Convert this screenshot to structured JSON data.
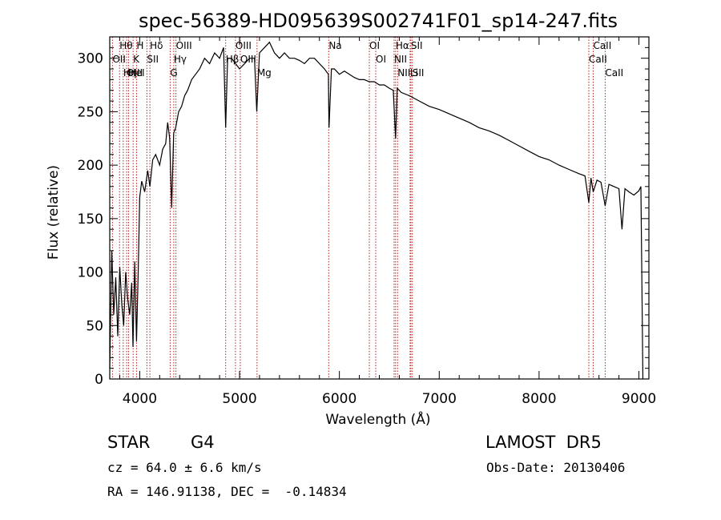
{
  "chart_data": {
    "type": "line",
    "title": "spec-56389-HD095639S002741F01_sp14-247.fits",
    "xlabel": "Wavelength (Å)",
    "ylabel": "Flux (relative)",
    "xlim": [
      3700,
      9100
    ],
    "ylim": [
      0,
      320
    ],
    "xticks": [
      4000,
      5000,
      6000,
      7000,
      8000,
      9000
    ],
    "yticks": [
      0,
      50,
      100,
      150,
      200,
      250,
      300
    ],
    "grid": false,
    "series": [
      {
        "x": [
          3700,
          3720,
          3740,
          3760,
          3780,
          3800,
          3820,
          3840,
          3860,
          3880,
          3900,
          3920,
          3933,
          3950,
          3968,
          3985,
          4000,
          4020,
          4050,
          4080,
          4102,
          4130,
          4160,
          4200,
          4230,
          4260,
          4280,
          4300,
          4320,
          4340,
          4360,
          4390,
          4420,
          4450,
          4480,
          4520,
          4560,
          4600,
          4650,
          4700,
          4750,
          4800,
          4840,
          4861,
          4880,
          4920,
          4960,
          5000,
          5050,
          5100,
          5150,
          5172,
          5200,
          5250,
          5300,
          5350,
          5400,
          5450,
          5500,
          5550,
          5600,
          5650,
          5700,
          5750,
          5800,
          5850,
          5890,
          5896,
          5920,
          5950,
          6000,
          6050,
          6100,
          6150,
          6200,
          6250,
          6300,
          6350,
          6400,
          6450,
          6500,
          6540,
          6563,
          6580,
          6620,
          6700,
          6800,
          6900,
          7000,
          7100,
          7200,
          7300,
          7400,
          7500,
          7600,
          7700,
          7800,
          7900,
          8000,
          8100,
          8200,
          8300,
          8400,
          8460,
          8498,
          8520,
          8542,
          8580,
          8620,
          8662,
          8700,
          8750,
          8800,
          8830,
          8860,
          8900,
          8950,
          9000,
          9020,
          9040
        ],
        "y": [
          10,
          120,
          60,
          95,
          40,
          105,
          70,
          50,
          100,
          75,
          60,
          90,
          30,
          110,
          35,
          100,
          170,
          185,
          175,
          195,
          180,
          205,
          210,
          200,
          215,
          220,
          240,
          225,
          160,
          230,
          235,
          250,
          255,
          265,
          270,
          280,
          285,
          290,
          300,
          295,
          305,
          300,
          310,
          235,
          300,
          300,
          295,
          290,
          295,
          300,
          300,
          250,
          305,
          310,
          315,
          305,
          300,
          305,
          300,
          300,
          298,
          295,
          300,
          300,
          295,
          290,
          285,
          235,
          290,
          290,
          285,
          288,
          285,
          282,
          280,
          280,
          278,
          278,
          275,
          275,
          272,
          270,
          225,
          272,
          268,
          265,
          260,
          255,
          252,
          248,
          244,
          240,
          235,
          232,
          228,
          223,
          218,
          213,
          208,
          205,
          200,
          196,
          192,
          190,
          165,
          188,
          175,
          186,
          184,
          162,
          182,
          180,
          178,
          140,
          178,
          175,
          172,
          176,
          180,
          0
        ]
      }
    ],
    "lines": [
      {
        "label": "Hθ",
        "x": 3798
      },
      {
        "label": "OII",
        "x": 3727
      },
      {
        "label": "OIII",
        "x": 3869
      },
      {
        "label": "K",
        "x": 3934
      },
      {
        "label": "HeI",
        "x": 3889
      },
      {
        "label": "Hη",
        "x": 3835
      },
      {
        "label": "H",
        "x": 3968
      },
      {
        "label": "Hδ",
        "x": 4102
      },
      {
        "label": "SII",
        "x": 4072
      },
      {
        "label": "OIII",
        "x": 4363
      },
      {
        "label": "Hγ",
        "x": 4341
      },
      {
        "label": "G",
        "x": 4305
      },
      {
        "label": "OIII",
        "x": 4959
      },
      {
        "label": "OIII",
        "x": 5007
      },
      {
        "label": "Hβ",
        "x": 4861
      },
      {
        "label": "Mg",
        "x": 5175
      },
      {
        "label": "Na",
        "x": 5893
      },
      {
        "label": "OI",
        "x": 6300
      },
      {
        "label": "OI",
        "x": 6364
      },
      {
        "label": "Hα",
        "x": 6563
      },
      {
        "label": "NII",
        "x": 6548
      },
      {
        "label": "NII",
        "x": 6583
      },
      {
        "label": "SII",
        "x": 6716
      },
      {
        "label": "Li",
        "x": 6708
      },
      {
        "label": "SII",
        "x": 6731
      },
      {
        "label": "CaII",
        "x": 8542
      },
      {
        "label": "CaII",
        "x": 8498
      },
      {
        "label": "CaII",
        "x": 8662
      }
    ]
  },
  "info": {
    "class_label": "STAR",
    "subclass": "G4",
    "survey": "LAMOST  DR5",
    "cz_line": "cz = 64.0 ± 6.6 km/s",
    "obs_date": "Obs-Date: 20130406",
    "coords": "RA = 146.91138, DEC =  -0.14834"
  },
  "colors": {
    "spectrum": "#000000",
    "line_markers": "#b22222",
    "axes": "#000000",
    "background": "#ffffff"
  }
}
